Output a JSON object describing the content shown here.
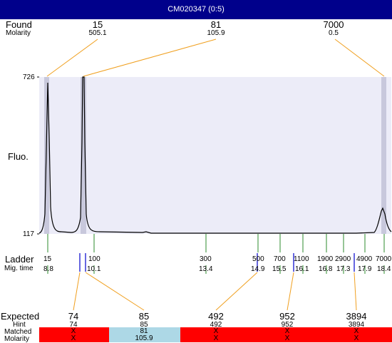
{
  "window": {
    "title": "CM020347 (0:5)"
  },
  "labels": {
    "found": "Found",
    "molarity": "Molarity",
    "fluo": "Fluo.",
    "ladder": "Ladder",
    "mig_time": "Mig. time",
    "expected": "Expected",
    "hint": "Hint",
    "matched": "Matched",
    "molarity_bottom": "Molarity"
  },
  "y_axis": {
    "max_label": "726",
    "min_label": "117"
  },
  "found_peaks": [
    {
      "size": "15",
      "molarity": "505.1"
    },
    {
      "size": "81",
      "molarity": "105.9"
    },
    {
      "size": "7000",
      "molarity": "0.5"
    }
  ],
  "ladder": [
    {
      "size": "15",
      "time": "8.8"
    },
    {
      "size": "100",
      "time": "10.1"
    },
    {
      "size": "300",
      "time": "13.4"
    },
    {
      "size": "500",
      "time": "14.9"
    },
    {
      "size": "700",
      "time": "15.5"
    },
    {
      "size": "1100",
      "time": "16.1"
    },
    {
      "size": "1900",
      "time": "16.8"
    },
    {
      "size": "2900",
      "time": "17.3"
    },
    {
      "size": "4900",
      "time": "17.9"
    },
    {
      "size": "7000",
      "time": "18.4"
    }
  ],
  "expected": [
    {
      "size": "74",
      "hint": "74",
      "matched": "X",
      "molarity": "X"
    },
    {
      "size": "85",
      "hint": "85",
      "matched": "81",
      "molarity": "105.9"
    },
    {
      "size": "492",
      "hint": "492",
      "matched": "X",
      "molarity": "X"
    },
    {
      "size": "952",
      "hint": "952",
      "matched": "X",
      "molarity": "X"
    },
    {
      "size": "3894",
      "hint": "3894",
      "matched": "X",
      "molarity": "X"
    }
  ],
  "colors": {
    "title_bg": "#00008b",
    "plot_bg": "#ececf8",
    "connector": "#f0a020",
    "ladder_tick": "#2e8b2e",
    "marker_blue": "#0000cc",
    "unmatched": "#ff0000",
    "matched": "#add8e6"
  }
}
